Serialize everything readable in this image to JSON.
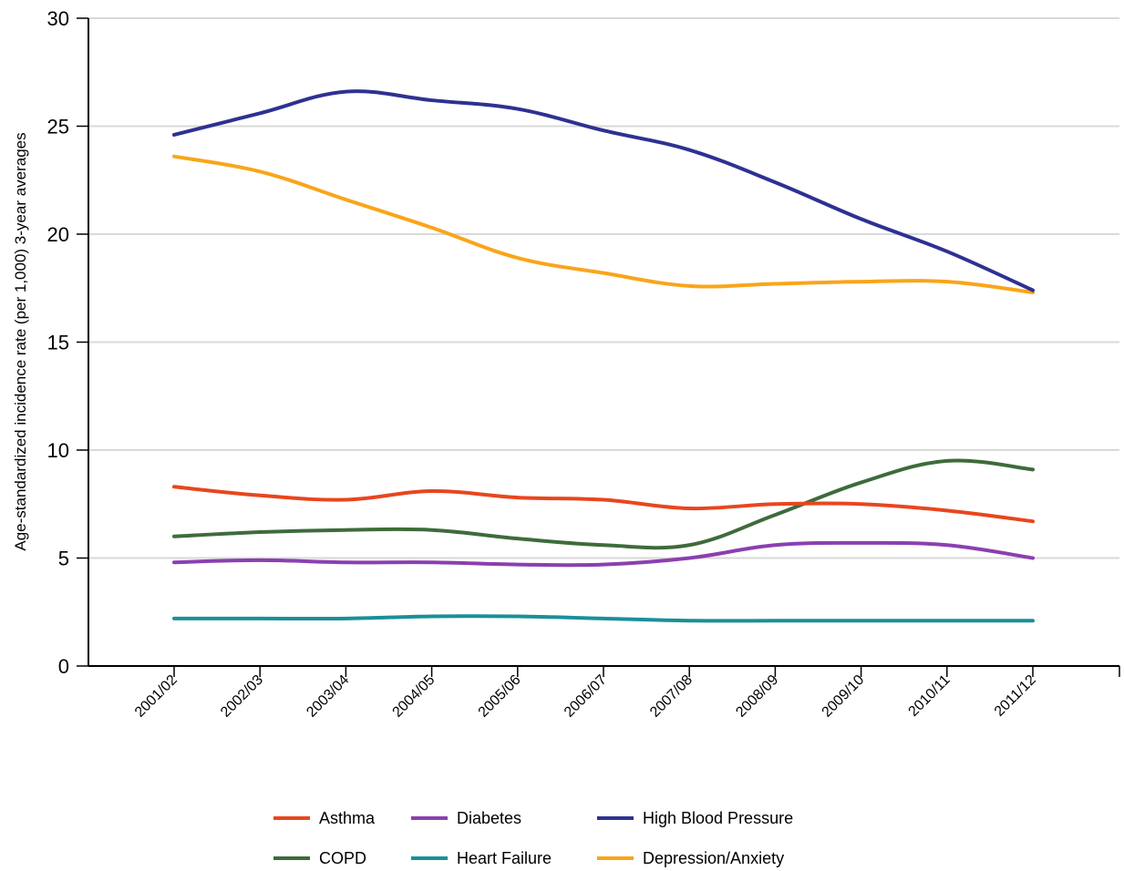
{
  "chart_data": {
    "type": "line",
    "title": "",
    "xlabel": "",
    "ylabel": "Age-standardized incidence rate  (per 1,000)  3-year averages",
    "categories": [
      "2001/02",
      "2002/03",
      "2003/04",
      "2004/05",
      "2005/06",
      "2006/07",
      "2007/08",
      "2008/09",
      "2009/10",
      "2010/11",
      "2011/12"
    ],
    "ylim": [
      0,
      30
    ],
    "yticks": [
      "0",
      "5",
      "10",
      "15",
      "20",
      "25",
      "30"
    ],
    "grid": true,
    "legend_position": "bottom",
    "series": [
      {
        "name": "Asthma",
        "color": "#e8461e",
        "values": [
          8.3,
          7.9,
          7.7,
          8.1,
          7.8,
          7.7,
          7.3,
          7.5,
          7.5,
          7.2,
          6.7
        ]
      },
      {
        "name": "Diabetes",
        "color": "#8b3fb0",
        "values": [
          4.8,
          4.9,
          4.8,
          4.8,
          4.7,
          4.7,
          5.0,
          5.6,
          5.7,
          5.6,
          5.0
        ]
      },
      {
        "name": "High Blood Pressure",
        "color": "#2e3192",
        "values": [
          24.6,
          25.6,
          26.6,
          26.2,
          25.8,
          24.8,
          23.9,
          22.4,
          20.7,
          19.2,
          17.4
        ]
      },
      {
        "name": "COPD",
        "color": "#3e6b3a",
        "values": [
          6.0,
          6.2,
          6.3,
          6.3,
          5.9,
          5.6,
          5.6,
          7.0,
          8.5,
          9.5,
          9.1
        ]
      },
      {
        "name": "Heart Failure",
        "color": "#1a8f99",
        "values": [
          2.2,
          2.2,
          2.2,
          2.3,
          2.3,
          2.2,
          2.1,
          2.1,
          2.1,
          2.1,
          2.1
        ]
      },
      {
        "name": "Depression/Anxiety",
        "color": "#f9a51a",
        "values": [
          23.6,
          22.9,
          21.6,
          20.3,
          18.9,
          18.2,
          17.6,
          17.7,
          17.8,
          17.8,
          17.3
        ]
      }
    ]
  }
}
